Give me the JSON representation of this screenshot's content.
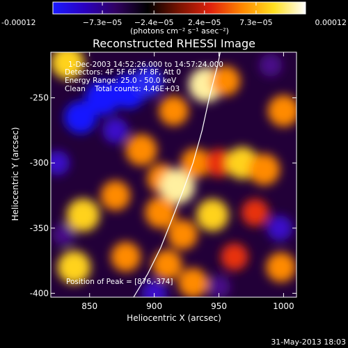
{
  "chart_data": {
    "type": "heatmap",
    "title": "Reconstructed RHESSI Image",
    "xlabel": "Heliocentric X (arcsec)",
    "ylabel": "Heliocentric Y (arcsec)",
    "xlim": [
      820,
      1010
    ],
    "ylim": [
      -403,
      -215
    ],
    "x_ticks": [
      "850",
      "900",
      "950",
      "1000"
    ],
    "y_ticks": [
      "-250",
      "-300",
      "-350",
      "-400"
    ],
    "x_tick_values": [
      850,
      900,
      950,
      1000
    ],
    "y_tick_values": [
      -250,
      -300,
      -350,
      -400
    ],
    "colorbar": {
      "range": [
        -0.00012,
        0.00012
      ],
      "ticks": [
        "-0.00012",
        "−7.3e−05",
        "−2.4e−05",
        "2.4e−05",
        "7.3e−05",
        "0.00012"
      ],
      "tick_values": [
        -0.00012,
        -7.3e-05,
        -2.4e-05,
        2.4e-05,
        7.3e-05,
        0.00012
      ],
      "unit_label": "(photons cm⁻² s⁻¹ asec⁻²)",
      "colors": [
        "#1a1aff",
        "#2a00c0",
        "#300060",
        "#000000",
        "#7a1300",
        "#e0220d",
        "#ff8800",
        "#ffe020",
        "#ffffff"
      ]
    },
    "annotations": [
      "1-Dec-2003 14:52:26.000 to 14:57:24.000",
      "Detectors: 4F 5F 6F 7F 8F, Att 0",
      "Energy Range: 25.0 - 50.0 keV",
      "Clean    Total counts: 4.46E+03"
    ],
    "peak_label": "Position of Peak = [876,-374]",
    "peak": [
      876,
      -374
    ],
    "limb_curve": [
      [
        884,
        -403
      ],
      [
        895,
        -385
      ],
      [
        905,
        -365
      ],
      [
        913,
        -345
      ],
      [
        922,
        -322
      ],
      [
        930,
        -300
      ],
      [
        937,
        -275
      ],
      [
        943,
        -248
      ],
      [
        949,
        -225
      ],
      [
        951,
        -215
      ]
    ],
    "blobs": [
      {
        "x": 833,
        "y": -223,
        "v": 0.9
      },
      {
        "x": 940,
        "y": -240,
        "v": 1.0
      },
      {
        "x": 955,
        "y": -237,
        "v": 0.7
      },
      {
        "x": 990,
        "y": -225,
        "v": -0.3
      },
      {
        "x": 1000,
        "y": -260,
        "v": 0.8
      },
      {
        "x": 915,
        "y": -260,
        "v": 0.7
      },
      {
        "x": 890,
        "y": -290,
        "v": 0.8
      },
      {
        "x": 906,
        "y": -312,
        "v": 0.7
      },
      {
        "x": 918,
        "y": -318,
        "v": 1.0
      },
      {
        "x": 932,
        "y": -300,
        "v": 0.7
      },
      {
        "x": 950,
        "y": -300,
        "v": 0.6
      },
      {
        "x": 968,
        "y": -300,
        "v": 0.85
      },
      {
        "x": 985,
        "y": -305,
        "v": 0.8
      },
      {
        "x": 845,
        "y": -340,
        "v": 0.9
      },
      {
        "x": 870,
        "y": -325,
        "v": 0.7
      },
      {
        "x": 905,
        "y": -338,
        "v": 0.8
      },
      {
        "x": 922,
        "y": -355,
        "v": 0.7
      },
      {
        "x": 945,
        "y": -340,
        "v": 0.85
      },
      {
        "x": 978,
        "y": -338,
        "v": 0.55
      },
      {
        "x": 838,
        "y": -380,
        "v": 0.9
      },
      {
        "x": 878,
        "y": -372,
        "v": 0.7
      },
      {
        "x": 910,
        "y": -378,
        "v": 0.7
      },
      {
        "x": 930,
        "y": -392,
        "v": 0.7
      },
      {
        "x": 962,
        "y": -372,
        "v": 0.55
      },
      {
        "x": 998,
        "y": -380,
        "v": 0.7
      },
      {
        "x": 860,
        "y": -250,
        "v": -1.0
      },
      {
        "x": 880,
        "y": -245,
        "v": -1.0
      },
      {
        "x": 895,
        "y": -238,
        "v": -0.75
      },
      {
        "x": 843,
        "y": -265,
        "v": -0.85
      },
      {
        "x": 870,
        "y": -275,
        "v": -0.45
      },
      {
        "x": 997,
        "y": -350,
        "v": -0.45
      },
      {
        "x": 825,
        "y": -300,
        "v": -0.4
      },
      {
        "x": 830,
        "y": -355,
        "v": -0.25
      },
      {
        "x": 950,
        "y": -395,
        "v": -0.3
      },
      {
        "x": 900,
        "y": -400,
        "v": -0.45
      }
    ]
  },
  "footer": {
    "date": "31-May-2013 18:03"
  }
}
